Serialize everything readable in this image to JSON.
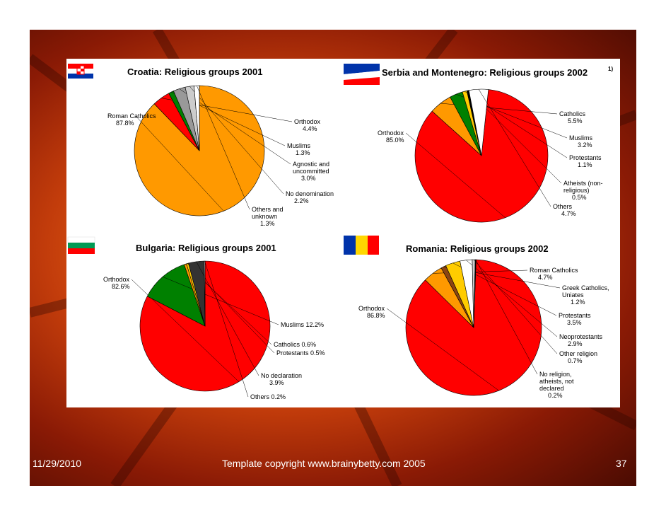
{
  "footer": {
    "date": "11/29/2010",
    "copyright": "Template copyright www.brainybetty.com 2005",
    "page": "37"
  },
  "colors": {
    "red": "#ff0000",
    "orange": "#ff9900",
    "green": "#008000",
    "gray": "#999999",
    "lightgray": "#cccccc",
    "white": "#ffffff",
    "yellow": "#ffcc00",
    "brown": "#8b4513",
    "dark": "#333333",
    "black": "#000000"
  },
  "chart_data": [
    {
      "type": "pie",
      "title": "Croatia: Religious groups 2001",
      "flag": "croatia-flag",
      "slices": [
        {
          "lines": [
            "Roman Catholics",
            "87.8%"
          ],
          "value": 87.8,
          "color": "orange"
        },
        {
          "lines": [
            "Orthodox",
            "4.4%"
          ],
          "value": 4.4,
          "color": "red"
        },
        {
          "lines": [
            "Muslims",
            "1.3%"
          ],
          "value": 1.3,
          "color": "green"
        },
        {
          "lines": [
            "Agnostic and",
            "uncommitted",
            "3.0%"
          ],
          "value": 3.0,
          "color": "gray"
        },
        {
          "lines": [
            "No denomination",
            "2.2%"
          ],
          "value": 2.2,
          "color": "lightgray"
        },
        {
          "lines": [
            "Others and",
            "unknown",
            "1.3%"
          ],
          "value": 1.3,
          "color": "white"
        }
      ]
    },
    {
      "type": "pie",
      "title": "Serbia and Montenegro: Religious groups 2002",
      "title_note": "1)",
      "flag": "serbia-montenegro-flag",
      "slices": [
        {
          "lines": [
            "Orthodox",
            "85.0%"
          ],
          "value": 85.0,
          "color": "red"
        },
        {
          "lines": [
            "Catholics",
            "5.5%"
          ],
          "value": 5.5,
          "color": "orange"
        },
        {
          "lines": [
            "Muslims",
            "3.2%"
          ],
          "value": 3.2,
          "color": "green"
        },
        {
          "lines": [
            "Protestants",
            "1.1%"
          ],
          "value": 1.1,
          "color": "yellow"
        },
        {
          "lines": [
            "Atheists (non-",
            "religious)",
            "0.5%"
          ],
          "value": 0.5,
          "color": "black"
        },
        {
          "lines": [
            "Others",
            "4.7%"
          ],
          "value": 4.7,
          "color": "white"
        }
      ]
    },
    {
      "type": "pie",
      "title": "Bulgaria: Religious groups 2001",
      "flag": "bulgaria-flag",
      "slices": [
        {
          "lines": [
            "Orthodox",
            "82.6%"
          ],
          "value": 82.6,
          "color": "red"
        },
        {
          "lines": [
            "Muslims 12.2%"
          ],
          "value": 12.2,
          "color": "green"
        },
        {
          "lines": [
            "Catholics 0.6%"
          ],
          "value": 0.6,
          "color": "orange"
        },
        {
          "lines": [
            "Protestants 0.5%"
          ],
          "value": 0.5,
          "color": "yellow"
        },
        {
          "lines": [
            "No declaration",
            "3.9%"
          ],
          "value": 3.9,
          "color": "dark"
        },
        {
          "lines": [
            "Others 0.2%"
          ],
          "value": 0.2,
          "color": "white"
        }
      ]
    },
    {
      "type": "pie",
      "title": "Romania: Religious groups 2002",
      "flag": "romania-flag",
      "slices": [
        {
          "lines": [
            "Orthodox",
            "86.8%"
          ],
          "value": 86.8,
          "color": "red"
        },
        {
          "lines": [
            "Roman Catholics",
            "4.7%"
          ],
          "value": 4.7,
          "color": "orange"
        },
        {
          "lines": [
            "Greek Catholics,",
            "Uniates",
            "1.2%"
          ],
          "value": 1.2,
          "color": "brown"
        },
        {
          "lines": [
            "Protestants",
            "3.5%"
          ],
          "value": 3.5,
          "color": "yellow"
        },
        {
          "lines": [
            "Neoprotestants",
            "2.9%"
          ],
          "value": 2.9,
          "color": "white"
        },
        {
          "lines": [
            "Other religion",
            "0.7%"
          ],
          "value": 0.7,
          "color": "lightgray"
        },
        {
          "lines": [
            "No religion,",
            "atheists, not",
            "declared",
            "0.2%"
          ],
          "value": 0.2,
          "color": "black"
        }
      ]
    }
  ]
}
